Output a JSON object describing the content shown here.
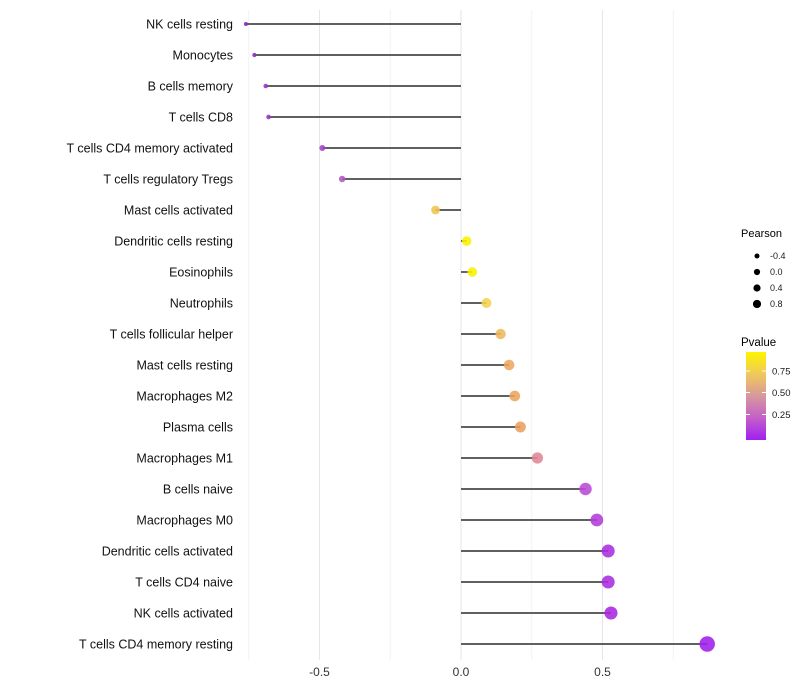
{
  "chart_data": {
    "type": "lollipop",
    "title": "",
    "xlabel": "",
    "ylabel": "",
    "x_axis": {
      "tick_values": [
        -0.5,
        0.0,
        0.5
      ],
      "tick_labels": [
        "-0.5",
        "0.0",
        "0.5"
      ],
      "minor_gridlines": [
        -0.75,
        -0.25,
        0.25,
        0.75
      ],
      "range": [
        -0.85,
        0.97
      ],
      "grid": "on"
    },
    "rows": [
      {
        "label": "NK cells resting",
        "pearson": -0.76,
        "pvalue": 0.07,
        "color": "#8928BC"
      },
      {
        "label": "Monocytes",
        "pearson": -0.73,
        "pvalue": 0.08,
        "color": "#8D2CC3"
      },
      {
        "label": "B cells memory",
        "pearson": -0.69,
        "pvalue": 0.1,
        "color": "#9434CA"
      },
      {
        "label": "T cells CD8",
        "pearson": -0.68,
        "pvalue": 0.1,
        "color": "#9434CA"
      },
      {
        "label": "T cells CD4 memory activated",
        "pearson": -0.49,
        "pvalue": 0.17,
        "color": "#A341CB"
      },
      {
        "label": "T cells regulatory  Tregs",
        "pearson": -0.42,
        "pvalue": 0.25,
        "color": "#B058C4"
      },
      {
        "label": "Mast cells activated",
        "pearson": -0.09,
        "pvalue": 0.7,
        "color": "#EFC54F"
      },
      {
        "label": "Dendritic cells resting",
        "pearson": 0.02,
        "pvalue": 0.92,
        "color": "#FAF100"
      },
      {
        "label": "Eosinophils",
        "pearson": 0.04,
        "pvalue": 0.9,
        "color": "#FAF100"
      },
      {
        "label": "Neutrophils",
        "pearson": 0.09,
        "pvalue": 0.74,
        "color": "#F4D14D"
      },
      {
        "label": "T cells follicular helper",
        "pearson": 0.14,
        "pvalue": 0.62,
        "color": "#EFB85E"
      },
      {
        "label": "Mast cells resting",
        "pearson": 0.17,
        "pvalue": 0.56,
        "color": "#EDA75F"
      },
      {
        "label": "Macrophages M2",
        "pearson": 0.19,
        "pvalue": 0.55,
        "color": "#ECA55D"
      },
      {
        "label": "Plasma cells",
        "pearson": 0.21,
        "pvalue": 0.52,
        "color": "#EA9F60"
      },
      {
        "label": "Macrophages M1",
        "pearson": 0.27,
        "pvalue": 0.4,
        "color": "#DF8795"
      },
      {
        "label": "B cells naive",
        "pearson": 0.44,
        "pvalue": 0.21,
        "color": "#BB49D6"
      },
      {
        "label": "Macrophages M0",
        "pearson": 0.48,
        "pvalue": 0.16,
        "color": "#B23BDA"
      },
      {
        "label": "Dendritic cells activated",
        "pearson": 0.52,
        "pvalue": 0.12,
        "color": "#AA2CDF"
      },
      {
        "label": "T cells CD4 naive",
        "pearson": 0.52,
        "pvalue": 0.12,
        "color": "#AA2CDF"
      },
      {
        "label": "NK cells activated",
        "pearson": 0.53,
        "pvalue": 0.11,
        "color": "#A827E0"
      },
      {
        "label": "T cells CD4 memory resting",
        "pearson": 0.87,
        "pvalue": 0.02,
        "color": "#A01EEC"
      }
    ],
    "legend_pearson": {
      "title": "Pearson",
      "entries": [
        {
          "label": "-0.4",
          "radius": 2.5
        },
        {
          "label": "0.0",
          "radius": 3.1
        },
        {
          "label": "0.4",
          "radius": 3.6
        },
        {
          "label": "0.8",
          "radius": 4.1
        }
      ],
      "dot_color": "#000000",
      "position": "right"
    },
    "legend_pvalue": {
      "title": "Pvalue",
      "tick_labels": [
        "0.75",
        "0.50",
        "0.25"
      ],
      "gradient_stops": [
        {
          "offset": 0.0,
          "color": "#FCF500"
        },
        {
          "offset": 0.25,
          "color": "#F0C95A"
        },
        {
          "offset": 0.5,
          "color": "#D6989D"
        },
        {
          "offset": 0.75,
          "color": "#C45FC9"
        },
        {
          "offset": 1.0,
          "color": "#A020F0"
        }
      ],
      "low_color": "#A020F0",
      "high_color": "#FCF500"
    },
    "style": {
      "stem_color": "#4A4A4A",
      "major_grid_color": "#E6E6E6",
      "minor_grid_color": "#F2F2F2",
      "axis_text_color": "#333333",
      "label_text_color": "#111111",
      "background": "#FFFFFF"
    }
  }
}
